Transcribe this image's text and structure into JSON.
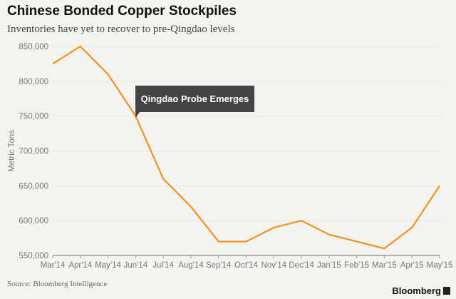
{
  "chart_data": {
    "type": "line",
    "title": "Chinese Bonded Copper Stockpiles",
    "subtitle": "Inventories have yet to recover to pre-Qingdao levels",
    "ylabel": "Metric Tons",
    "xlabel": "",
    "categories": [
      "Mar'14",
      "Apr'14",
      "May'14",
      "Jun'14",
      "Jul'14",
      "Aug'14",
      "Sep'14",
      "Oct'14",
      "Nov'14",
      "Dec'14",
      "Jan'15",
      "Feb'15",
      "Mar'15",
      "Apr'15",
      "May'15"
    ],
    "values": [
      825000,
      850000,
      810000,
      750000,
      660000,
      620000,
      570000,
      570000,
      590000,
      600000,
      580000,
      570000,
      560000,
      590000,
      650000
    ],
    "ylim": [
      550000,
      850000
    ],
    "yticks": [
      "550,000",
      "600,000",
      "650,000",
      "700,000",
      "750,000",
      "800,000",
      "850,000"
    ],
    "grid": true,
    "line_color": "#f7901e",
    "annotation": {
      "text": "Qingdao Probe Emerges",
      "category": "Jun'14"
    },
    "source": "Source: Bloomberg Intelligence",
    "brand": "Bloomberg"
  }
}
